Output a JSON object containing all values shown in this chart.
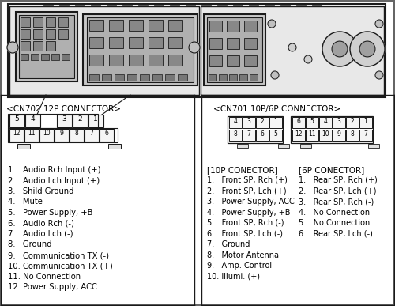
{
  "bg_color": "#ffffff",
  "line_color": "#1a1a1a",
  "fill_light": "#d8d8d8",
  "fill_mid": "#b0b0b0",
  "fill_dark": "#888888",
  "cn702_label": "<CN702 12P CONNECTOR>",
  "cn701_label": "<CN701 10P/6P CONNECTOR>",
  "tenp_label": "[10P CONECTOR]",
  "sixp_label": "[6P CONECTOR]",
  "cn702_top_pins": [
    "5",
    "4",
    "",
    "3",
    "2",
    "1"
  ],
  "cn702_bot_pins": [
    "12",
    "11",
    "10",
    "9",
    "8",
    "7",
    "6"
  ],
  "cn701_top_pins": [
    "4",
    "3",
    "",
    "2",
    "1",
    "",
    "2",
    "1",
    "",
    "2",
    "1"
  ],
  "cn702_list_col1": [
    "1.   Audio Rch Input (+)",
    "2.   Audio Lch Input (+)",
    "3.   Shild Ground",
    "4.   Mute",
    "5.   Power Supply, +B",
    "6.   Audio Rch (-)"
  ],
  "cn702_list_col2": [
    "7.   Audio Lch (-)",
    "8.   Ground",
    "9.   Communication TX (-)",
    "10. Communication TX (+)",
    "11. No Connection",
    "12. Power Supply, ACC"
  ],
  "tenp_list": [
    "1.   Front SP, Rch (+)",
    "2.   Front SP, Lch (+)",
    "3.   Power Supply, ACC",
    "4.   Power Supply, +B",
    "5.   Front SP, Rch (-)",
    "6.   Front SP, Lch (-)",
    "7.   Ground",
    "8.   Motor Antenna",
    "9.   Amp. Control",
    "10. Illumi. (+)"
  ],
  "sixp_list": [
    "1.   Rear SP, Rch (+)",
    "2.   Rear SP, Lch (+)",
    "3.   Rear SP, Rch (-)",
    "4.   No Connection",
    "5.   No Connection",
    "6.   Rear SP, Lch (-)"
  ]
}
